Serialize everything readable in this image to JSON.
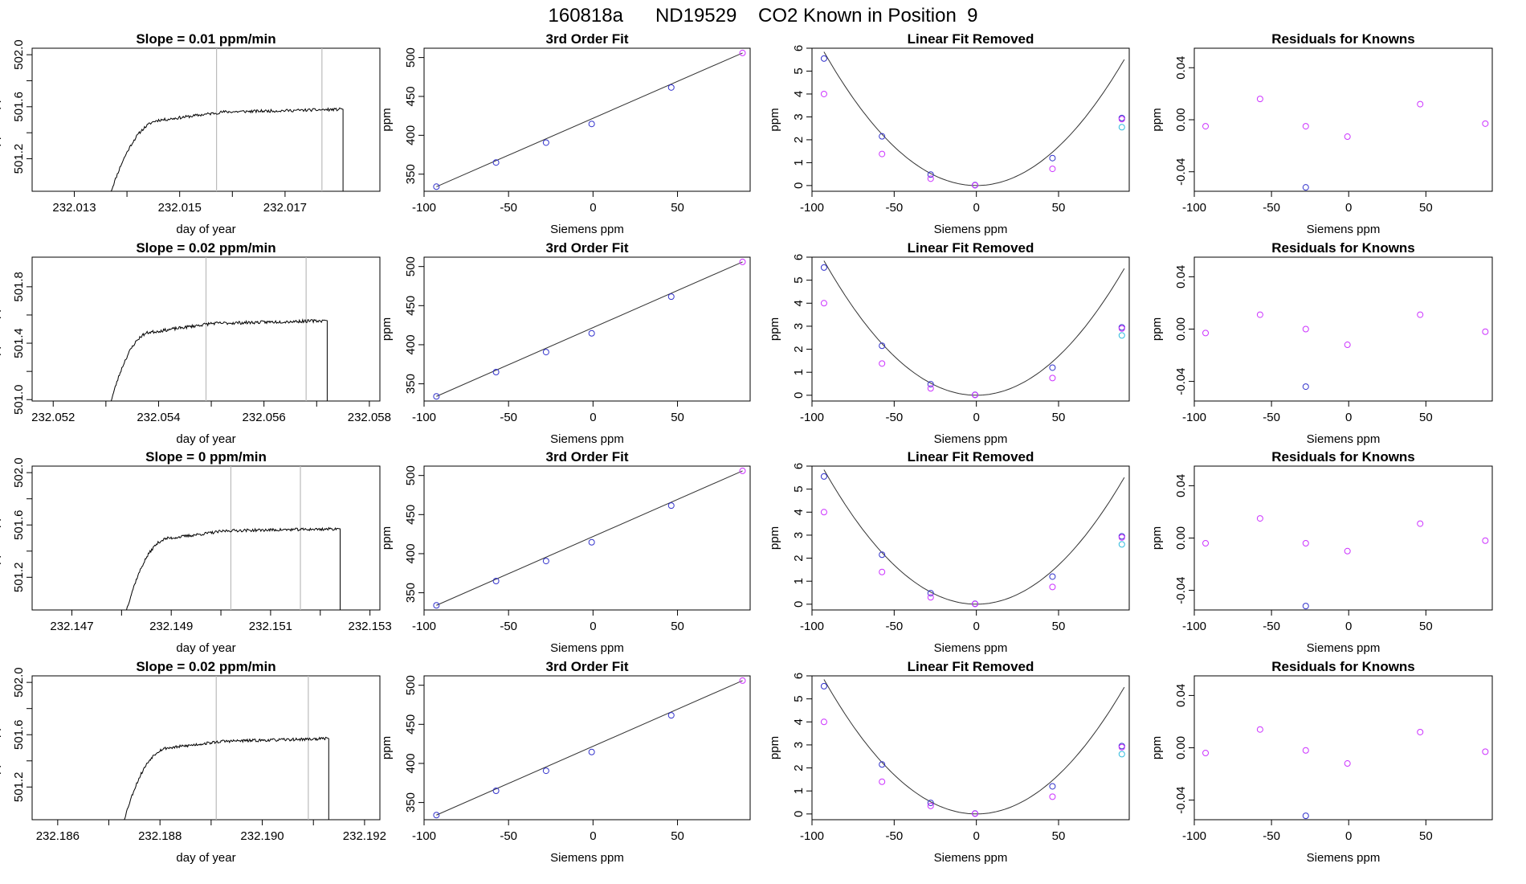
{
  "page_title": "160818a      ND19529    CO2 Known in Position  9",
  "colors": {
    "trace": "#000000",
    "fit_line": "#333333",
    "blue_points": "#3333cc",
    "magenta_points": "#cc33ff",
    "cyan_points": "#33bbdd",
    "marker_lines": "#bbbbbb",
    "frame": "#000000"
  },
  "chart_data": [
    {
      "type": "line",
      "panel": "timeseries",
      "row": 1,
      "title": "Slope =  0.01  ppm/min",
      "xlabel": "day of year",
      "ylabel": "approx. ppm",
      "xlim": [
        232.0122,
        232.0188
      ],
      "ylim": [
        500.95,
        502.05
      ],
      "xticks": [
        232.013,
        232.014,
        232.015,
        232.016,
        232.017
      ],
      "xtick_labels": [
        "232.013",
        "",
        "232.015",
        "",
        "232.017"
      ],
      "yticks": [
        501.2,
        501.4,
        501.6,
        501.8,
        502.0
      ],
      "ytick_labels": [
        "501.2",
        "",
        "501.6",
        "",
        "502.0"
      ],
      "vlines": [
        232.0157,
        232.0177
      ],
      "start": 232.0137,
      "end": 232.0181,
      "bottom": 500.95,
      "rise_end": 232.0147,
      "rise_level": 501.5,
      "plateau": 501.55,
      "plateau_end": 501.58,
      "seed": 11
    },
    {
      "type": "scatter",
      "panel": "cubic-fit",
      "row": 1,
      "title": "3rd Order Fit",
      "xlabel": "Siemens ppm",
      "ylabel": "ppm",
      "xlim": [
        -100,
        93
      ],
      "ylim": [
        328,
        512
      ],
      "xticks": [
        -100,
        -50,
        0,
        50
      ],
      "yticks": [
        350,
        400,
        450,
        500
      ],
      "series": [
        {
          "name": "fit",
          "x": [
            -92.7,
            88.5
          ],
          "y": [
            333.9,
            505.9
          ]
        },
        {
          "name": "knowns",
          "x": [
            -92.7,
            -57.4,
            -27.8,
            -0.8,
            46.3,
            88.5
          ],
          "y": [
            333.9,
            365.0,
            390.6,
            414.6,
            461.5,
            505.9
          ]
        }
      ]
    },
    {
      "type": "scatter",
      "panel": "linear-removed",
      "row": 1,
      "title": "Linear Fit Removed",
      "xlabel": "Siemens ppm",
      "ylabel": "ppm",
      "xlim": [
        -100,
        93
      ],
      "ylim": [
        -0.25,
        6.0
      ],
      "xticks": [
        -100,
        -50,
        0,
        50
      ],
      "yticks": [
        0,
        1,
        2,
        3,
        4,
        5,
        6
      ],
      "curve": {
        "a": 0.00068,
        "b": 0.0,
        "c": 0.0,
        "x_from": -92.7,
        "x_to": 90
      },
      "series": [
        {
          "name": "blue",
          "x": [
            -92.7,
            -57.4,
            -27.8,
            -0.8,
            46.3,
            88.5
          ],
          "y": [
            5.55,
            2.15,
            0.48,
            0.02,
            1.2,
            2.95
          ]
        },
        {
          "name": "magenta",
          "x": [
            -92.7,
            -57.4,
            -27.8,
            -0.8,
            46.3,
            88.5
          ],
          "y": [
            4.0,
            1.38,
            0.3,
            0.01,
            0.73,
            2.9
          ]
        },
        {
          "name": "cyan",
          "x": [
            88.5
          ],
          "y": [
            2.55
          ]
        }
      ]
    },
    {
      "type": "scatter",
      "panel": "residuals",
      "row": 1,
      "title": "Residuals for Knowns",
      "xlabel": "Siemens ppm",
      "ylabel": "ppm",
      "xlim": [
        -100,
        93
      ],
      "ylim": [
        -0.055,
        0.055
      ],
      "xticks": [
        -100,
        -50,
        0,
        50
      ],
      "yticks": [
        -0.04,
        0.0,
        0.04
      ],
      "ytick_labels": [
        "-0.04",
        "0.00",
        "0.04"
      ],
      "series": [
        {
          "name": "magenta",
          "x": [
            -92.7,
            -57.4,
            -27.8,
            -0.8,
            46.3,
            88.5
          ],
          "y": [
            -0.005,
            0.016,
            -0.005,
            -0.013,
            0.012,
            -0.003
          ]
        },
        {
          "name": "blue",
          "x": [
            -27.8
          ],
          "y": [
            -0.052
          ]
        }
      ]
    },
    {
      "type": "line",
      "panel": "timeseries",
      "row": 2,
      "title": "Slope =  0.02  ppm/min",
      "xlabel": "day of year",
      "ylabel": "approx. ppm",
      "xlim": [
        232.0516,
        232.0582
      ],
      "ylim": [
        500.99,
        502.01
      ],
      "xticks": [
        232.052,
        232.053,
        232.054,
        232.055,
        232.056,
        232.057,
        232.058
      ],
      "xtick_labels": [
        "232.052",
        "",
        "232.054",
        "",
        "232.056",
        "",
        "232.058"
      ],
      "yticks": [
        501.0,
        501.2,
        501.4,
        501.6,
        501.8
      ],
      "ytick_labels": [
        "501.0",
        "",
        "501.4",
        "",
        "501.8"
      ],
      "vlines": [
        232.0549,
        232.0568
      ],
      "start": 232.0531,
      "end": 232.0572,
      "bottom": 500.99,
      "rise_end": 232.0539,
      "rise_level": 501.48,
      "plateau": 501.53,
      "plateau_end": 501.56,
      "seed": 23
    },
    {
      "type": "scatter",
      "panel": "cubic-fit",
      "row": 2,
      "title": "3rd Order Fit",
      "xlabel": "Siemens ppm",
      "ylabel": "ppm",
      "xlim": [
        -100,
        93
      ],
      "ylim": [
        328,
        512
      ],
      "xticks": [
        -100,
        -50,
        0,
        50
      ],
      "yticks": [
        350,
        400,
        450,
        500
      ],
      "series": [
        {
          "name": "fit",
          "x": [
            -92.7,
            88.5
          ],
          "y": [
            333.9,
            505.9
          ]
        },
        {
          "name": "knowns",
          "x": [
            -92.7,
            -57.4,
            -27.8,
            -0.8,
            46.3,
            88.5
          ],
          "y": [
            333.9,
            365.0,
            390.6,
            414.6,
            461.5,
            505.9
          ]
        }
      ]
    },
    {
      "type": "scatter",
      "panel": "linear-removed",
      "row": 2,
      "title": "Linear Fit Removed",
      "xlabel": "Siemens ppm",
      "ylabel": "ppm",
      "xlim": [
        -100,
        93
      ],
      "ylim": [
        -0.25,
        6.0
      ],
      "xticks": [
        -100,
        -50,
        0,
        50
      ],
      "yticks": [
        0,
        1,
        2,
        3,
        4,
        5,
        6
      ],
      "curve": {
        "a": 0.00068,
        "b": 0.0,
        "c": 0.0,
        "x_from": -92.7,
        "x_to": 90
      },
      "series": [
        {
          "name": "blue",
          "x": [
            -92.7,
            -57.4,
            -27.8,
            -0.8,
            46.3,
            88.5
          ],
          "y": [
            5.55,
            2.15,
            0.48,
            0.02,
            1.2,
            2.95
          ]
        },
        {
          "name": "magenta",
          "x": [
            -92.7,
            -57.4,
            -27.8,
            -0.8,
            46.3,
            88.5
          ],
          "y": [
            4.0,
            1.38,
            0.3,
            0.01,
            0.75,
            2.9
          ]
        },
        {
          "name": "cyan",
          "x": [
            88.5
          ],
          "y": [
            2.6
          ]
        }
      ]
    },
    {
      "type": "scatter",
      "panel": "residuals",
      "row": 2,
      "title": "Residuals for Knowns",
      "xlabel": "Siemens ppm",
      "ylabel": "ppm",
      "xlim": [
        -100,
        93
      ],
      "ylim": [
        -0.055,
        0.055
      ],
      "xticks": [
        -100,
        -50,
        0,
        50
      ],
      "yticks": [
        -0.04,
        0.0,
        0.04
      ],
      "ytick_labels": [
        "-0.04",
        "0.00",
        "0.04"
      ],
      "series": [
        {
          "name": "magenta",
          "x": [
            -92.7,
            -57.4,
            -27.8,
            -0.8,
            46.3,
            88.5
          ],
          "y": [
            -0.003,
            0.011,
            0.0,
            -0.012,
            0.011,
            -0.002
          ]
        },
        {
          "name": "blue",
          "x": [
            -27.8
          ],
          "y": [
            -0.044
          ]
        }
      ]
    },
    {
      "type": "line",
      "panel": "timeseries",
      "row": 3,
      "title": "Slope =  0  ppm/min",
      "xlabel": "day of year",
      "ylabel": "approx. ppm",
      "xlim": [
        232.1462,
        232.1532
      ],
      "ylim": [
        500.95,
        502.05
      ],
      "xticks": [
        232.147,
        232.148,
        232.149,
        232.15,
        232.151,
        232.152,
        232.153
      ],
      "xtick_labels": [
        "232.147",
        "",
        "232.149",
        "",
        "232.151",
        "",
        "232.153"
      ],
      "yticks": [
        501.2,
        501.4,
        501.6,
        501.8,
        502.0
      ],
      "ytick_labels": [
        "501.2",
        "",
        "501.6",
        "",
        "502.0"
      ],
      "vlines": [
        232.1502,
        232.1516
      ],
      "start": 232.1481,
      "end": 232.1524,
      "bottom": 500.95,
      "rise_end": 232.149,
      "rise_level": 501.5,
      "plateau": 501.55,
      "plateau_end": 501.57,
      "seed": 37
    },
    {
      "type": "scatter",
      "panel": "cubic-fit",
      "row": 3,
      "title": "3rd Order Fit",
      "xlabel": "Siemens ppm",
      "ylabel": "ppm",
      "xlim": [
        -100,
        93
      ],
      "ylim": [
        328,
        512
      ],
      "xticks": [
        -100,
        -50,
        0,
        50
      ],
      "yticks": [
        350,
        400,
        450,
        500
      ],
      "series": [
        {
          "name": "fit",
          "x": [
            -92.7,
            88.5
          ],
          "y": [
            333.9,
            505.9
          ]
        },
        {
          "name": "knowns",
          "x": [
            -92.7,
            -57.4,
            -27.8,
            -0.8,
            46.3,
            88.5
          ],
          "y": [
            333.9,
            365.0,
            390.6,
            414.6,
            461.5,
            505.9
          ]
        }
      ]
    },
    {
      "type": "scatter",
      "panel": "linear-removed",
      "row": 3,
      "title": "Linear Fit Removed",
      "xlabel": "Siemens ppm",
      "ylabel": "ppm",
      "xlim": [
        -100,
        93
      ],
      "ylim": [
        -0.25,
        6.0
      ],
      "xticks": [
        -100,
        -50,
        0,
        50
      ],
      "yticks": [
        0,
        1,
        2,
        3,
        4,
        5,
        6
      ],
      "curve": {
        "a": 0.00068,
        "b": 0.0,
        "c": 0.0,
        "x_from": -92.7,
        "x_to": 90
      },
      "series": [
        {
          "name": "blue",
          "x": [
            -92.7,
            -57.4,
            -27.8,
            -0.8,
            46.3,
            88.5
          ],
          "y": [
            5.55,
            2.15,
            0.48,
            0.02,
            1.2,
            2.95
          ]
        },
        {
          "name": "magenta",
          "x": [
            -92.7,
            -57.4,
            -27.8,
            -0.8,
            46.3,
            88.5
          ],
          "y": [
            4.0,
            1.4,
            0.3,
            0.01,
            0.75,
            2.9
          ]
        },
        {
          "name": "cyan",
          "x": [
            88.5
          ],
          "y": [
            2.6
          ]
        }
      ]
    },
    {
      "type": "scatter",
      "panel": "residuals",
      "row": 3,
      "title": "Residuals for Knowns",
      "xlabel": "Siemens ppm",
      "ylabel": "ppm",
      "xlim": [
        -100,
        93
      ],
      "ylim": [
        -0.055,
        0.055
      ],
      "xticks": [
        -100,
        -50,
        0,
        50
      ],
      "yticks": [
        -0.04,
        0.0,
        0.04
      ],
      "ytick_labels": [
        "-0.04",
        "0.00",
        "0.04"
      ],
      "series": [
        {
          "name": "magenta",
          "x": [
            -92.7,
            -57.4,
            -27.8,
            -0.8,
            46.3,
            88.5
          ],
          "y": [
            -0.004,
            0.015,
            -0.004,
            -0.01,
            0.011,
            -0.002
          ]
        },
        {
          "name": "blue",
          "x": [
            -27.8
          ],
          "y": [
            -0.052
          ]
        }
      ]
    },
    {
      "type": "line",
      "panel": "timeseries",
      "row": 4,
      "title": "Slope =  0.02  ppm/min",
      "xlabel": "day of year",
      "ylabel": "approx. ppm",
      "xlim": [
        232.1855,
        232.1923
      ],
      "ylim": [
        500.95,
        502.05
      ],
      "xticks": [
        232.186,
        232.187,
        232.188,
        232.189,
        232.19,
        232.191,
        232.192
      ],
      "xtick_labels": [
        "232.186",
        "",
        "232.188",
        "",
        "232.190",
        "",
        "232.192"
      ],
      "yticks": [
        501.2,
        501.4,
        501.6,
        501.8,
        502.0
      ],
      "ytick_labels": [
        "501.2",
        "",
        "501.6",
        "",
        "502.0"
      ],
      "vlines": [
        232.1891,
        232.1909
      ],
      "start": 232.1873,
      "end": 232.1913,
      "bottom": 500.95,
      "rise_end": 232.1882,
      "rise_level": 501.5,
      "plateau": 501.54,
      "plateau_end": 501.57,
      "seed": 53
    },
    {
      "type": "scatter",
      "panel": "cubic-fit",
      "row": 4,
      "title": "3rd Order Fit",
      "xlabel": "Siemens ppm",
      "ylabel": "ppm",
      "xlim": [
        -100,
        93
      ],
      "ylim": [
        328,
        512
      ],
      "xticks": [
        -100,
        -50,
        0,
        50
      ],
      "yticks": [
        350,
        400,
        450,
        500
      ],
      "series": [
        {
          "name": "fit",
          "x": [
            -92.7,
            88.5
          ],
          "y": [
            333.9,
            505.9
          ]
        },
        {
          "name": "knowns",
          "x": [
            -92.7,
            -57.4,
            -27.8,
            -0.8,
            46.3,
            88.5
          ],
          "y": [
            333.9,
            365.0,
            390.6,
            414.6,
            461.5,
            505.9
          ]
        }
      ]
    },
    {
      "type": "scatter",
      "panel": "linear-removed",
      "row": 4,
      "title": "Linear Fit Removed",
      "xlabel": "Siemens ppm",
      "ylabel": "ppm",
      "xlim": [
        -100,
        93
      ],
      "ylim": [
        -0.25,
        6.0
      ],
      "xticks": [
        -100,
        -50,
        0,
        50
      ],
      "yticks": [
        0,
        1,
        2,
        3,
        4,
        5,
        6
      ],
      "curve": {
        "a": 0.00068,
        "b": 0.0,
        "c": 0.0,
        "x_from": -92.7,
        "x_to": 90
      },
      "series": [
        {
          "name": "blue",
          "x": [
            -92.7,
            -57.4,
            -27.8,
            -0.8,
            46.3,
            88.5
          ],
          "y": [
            5.55,
            2.15,
            0.48,
            0.02,
            1.2,
            2.95
          ]
        },
        {
          "name": "magenta",
          "x": [
            -92.7,
            -57.4,
            -27.8,
            -0.8,
            46.3,
            88.5
          ],
          "y": [
            4.0,
            1.4,
            0.35,
            0.01,
            0.75,
            2.9
          ]
        },
        {
          "name": "cyan",
          "x": [
            88.5
          ],
          "y": [
            2.6
          ]
        }
      ]
    },
    {
      "type": "scatter",
      "panel": "residuals",
      "row": 4,
      "title": "Residuals for Knowns",
      "xlabel": "Siemens ppm",
      "ylabel": "ppm",
      "xlim": [
        -100,
        93
      ],
      "ylim": [
        -0.055,
        0.055
      ],
      "xticks": [
        -100,
        -50,
        0,
        50
      ],
      "yticks": [
        -0.04,
        0.0,
        0.04
      ],
      "ytick_labels": [
        "-0.04",
        "0.00",
        "0.04"
      ],
      "series": [
        {
          "name": "magenta",
          "x": [
            -92.7,
            -57.4,
            -27.8,
            -0.8,
            46.3,
            88.5
          ],
          "y": [
            -0.004,
            0.014,
            -0.002,
            -0.012,
            0.012,
            -0.003
          ]
        },
        {
          "name": "blue",
          "x": [
            -27.8
          ],
          "y": [
            -0.052
          ]
        }
      ]
    }
  ]
}
